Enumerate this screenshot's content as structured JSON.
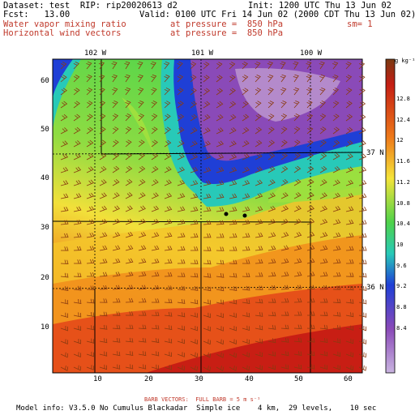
{
  "header": {
    "dataset": "Dataset: test  RIP: rip20020613 d2",
    "init": "Init: 1200 UTC Thu 13 Jun 02",
    "fcst": "Fcst:   13.00",
    "valid": "Valid: 0100 UTC Fri 14 Jun 02 (2000 CDT Thu 13 Jun 02)",
    "field1": "Water vapor mixing ratio",
    "field1_level": "at pressure =  850 hPa",
    "field1_extra": "sm= 1",
    "field2": "Horizontal wind vectors",
    "field2_level": "at pressure =  850 hPa"
  },
  "map": {
    "x_ticks": [
      "10",
      "20",
      "30",
      "40",
      "50",
      "60"
    ],
    "y_ticks": [
      "10",
      "20",
      "30",
      "40",
      "50",
      "60"
    ],
    "lon_labels": [
      "102 W",
      "101 W",
      "100 W"
    ],
    "lat_labels": [
      "37 N",
      "36 N"
    ],
    "colors": {
      "moist_high": "#d4221a",
      "moist_mid": "#f08a1c",
      "yellow": "#f2e03a",
      "green": "#5cd64a",
      "cyan": "#28c9b8",
      "blue": "#1f3fd6",
      "purple": "#8a4ab8",
      "light_purple": "#b48acb",
      "barb": "#8a3a10"
    }
  },
  "colorbar": {
    "unit": "g kg⁻¹",
    "labels": [
      "12.8",
      "12.4",
      "12",
      "11.6",
      "11.2",
      "10.8",
      "10.4",
      "10",
      "9.6",
      "9.2",
      "8.8",
      "8.4"
    ]
  },
  "footer": {
    "barb_note": "BARB VECTORS:  FULL BARB = 5 m s⁻¹",
    "model_info": "Model info: V3.5.0 No Cumulus Blackadar  Simple ice    4 km,  29 levels,    10 sec"
  }
}
